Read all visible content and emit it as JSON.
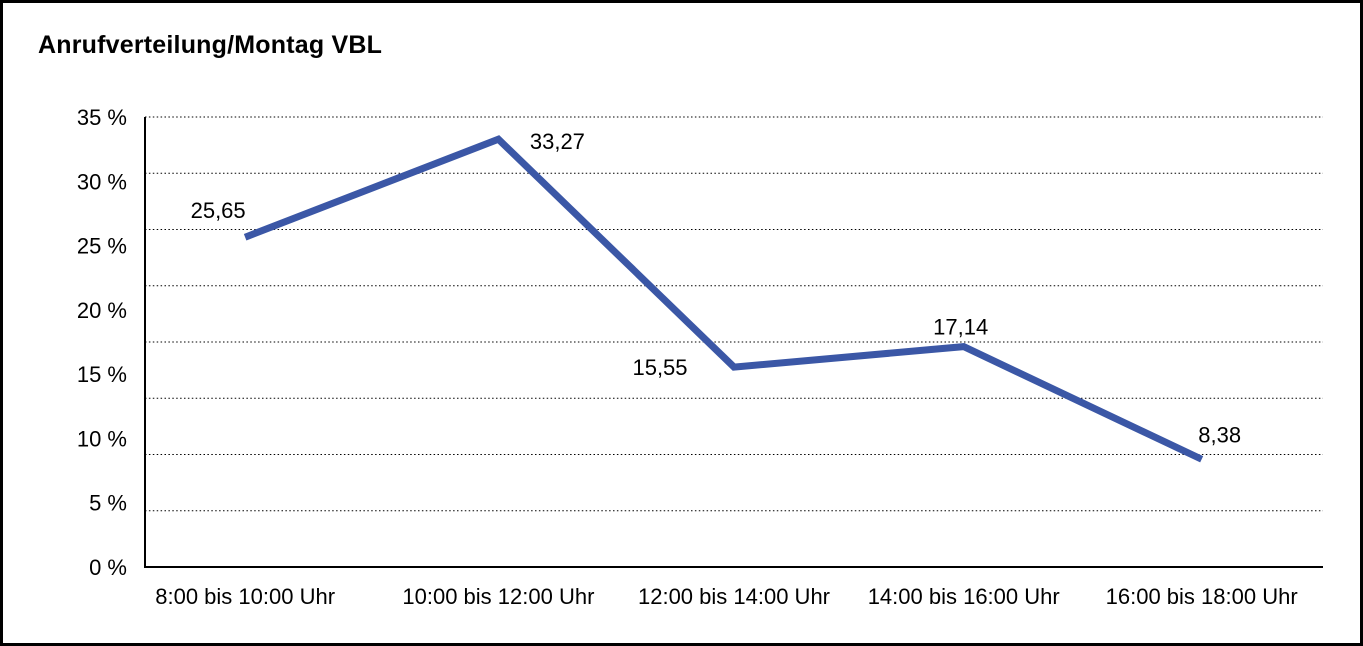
{
  "window": {
    "title": "Anrufverteilung/Montag VBL"
  },
  "chart_data": {
    "type": "line",
    "title": "Anrufverteilung/Montag VBL",
    "categories": [
      "8:00 bis 10:00 Uhr",
      "10:00 bis 12:00 Uhr",
      "12:00 bis 14:00 Uhr",
      "14:00 bis 16:00 Uhr",
      "16:00 bis 18:00 Uhr"
    ],
    "values": [
      25.65,
      33.27,
      15.55,
      17.14,
      8.38
    ],
    "point_labels": [
      "25,65",
      "33,27",
      "15,55",
      "17,14",
      "8,38"
    ],
    "y_tick_values": [
      0,
      5,
      10,
      15,
      20,
      25,
      30,
      35
    ],
    "y_tick_labels": [
      "0 %",
      "5 %",
      "10 %",
      "15 %",
      "20 %",
      "25 %",
      "30 %",
      "35 %"
    ],
    "ylim": [
      0,
      35
    ],
    "xlabel": "",
    "ylabel": "",
    "legend_position": "none",
    "grid": "horizontal-dotted",
    "line_color": "#3B57A6",
    "axis_color": "#000000",
    "grid_color": "#000000",
    "text_color": "#000000"
  }
}
